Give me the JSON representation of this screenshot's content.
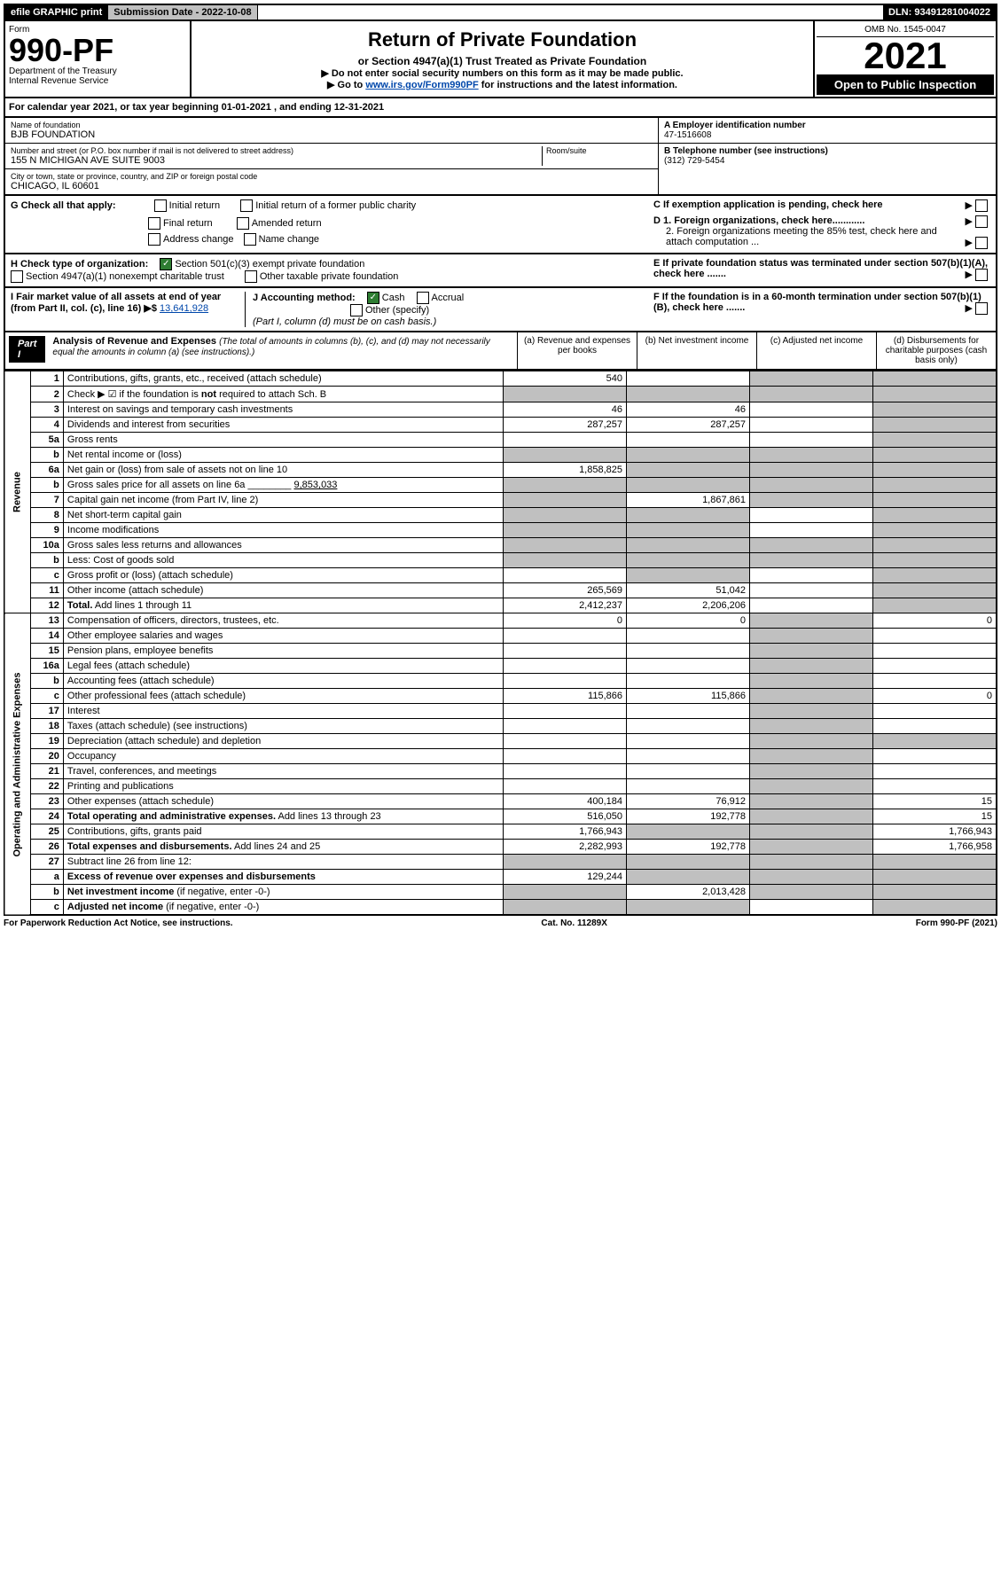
{
  "top": {
    "efile": "efile GRAPHIC print",
    "sub_label": "Submission Date - 2022-10-08",
    "dln": "DLN: 93491281004022"
  },
  "header": {
    "form_label": "Form",
    "form_num": "990-PF",
    "dept": "Department of the Treasury",
    "irs": "Internal Revenue Service",
    "title": "Return of Private Foundation",
    "subtitle": "or Section 4947(a)(1) Trust Treated as Private Foundation",
    "instr1": "▶ Do not enter social security numbers on this form as it may be made public.",
    "instr2_prefix": "▶ Go to ",
    "instr2_link": "www.irs.gov/Form990PF",
    "instr2_suffix": " for instructions and the latest information.",
    "omb": "OMB No. 1545-0047",
    "year": "2021",
    "open": "Open to Public Inspection"
  },
  "cal": "For calendar year 2021, or tax year beginning 01-01-2021              , and ending 12-31-2021",
  "info": {
    "name_lbl": "Name of foundation",
    "name": "BJB FOUNDATION",
    "addr_lbl": "Number and street (or P.O. box number if mail is not delivered to street address)",
    "addr": "155 N MICHIGAN AVE SUITE 9003",
    "room_lbl": "Room/suite",
    "city_lbl": "City or town, state or province, country, and ZIP or foreign postal code",
    "city": "CHICAGO, IL  60601",
    "ein_lbl": "A Employer identification number",
    "ein": "47-1516608",
    "tel_lbl": "B Telephone number (see instructions)",
    "tel": "(312) 729-5454",
    "c_lbl": "C If exemption application is pending, check here",
    "d1": "D 1. Foreign organizations, check here............",
    "d2": "2. Foreign organizations meeting the 85% test, check here and attach computation ...",
    "e_lbl": "E If private foundation status was terminated under section 507(b)(1)(A), check here .......",
    "f_lbl": "F If the foundation is in a 60-month termination under section 507(b)(1)(B), check here ......."
  },
  "g": {
    "label": "G Check all that apply:",
    "opts": [
      "Initial return",
      "Initial return of a former public charity",
      "Final return",
      "Amended return",
      "Address change",
      "Name change"
    ]
  },
  "h": {
    "label": "H Check type of organization:",
    "opt1": "Section 501(c)(3) exempt private foundation",
    "opt2": "Section 4947(a)(1) nonexempt charitable trust",
    "opt3": "Other taxable private foundation"
  },
  "i": {
    "label": "I Fair market value of all assets at end of year (from Part II, col. (c), line 16) ▶$",
    "value": "13,641,928"
  },
  "j": {
    "label": "J Accounting method:",
    "cash": "Cash",
    "accrual": "Accrual",
    "other": "Other (specify)",
    "note": "(Part I, column (d) must be on cash basis.)"
  },
  "part1": {
    "hdr": "Part I",
    "title": "Analysis of Revenue and Expenses",
    "sub": "(The total of amounts in columns (b), (c), and (d) may not necessarily equal the amounts in column (a) (see instructions).)",
    "col_a": "(a) Revenue and expenses per books",
    "col_b": "(b) Net investment income",
    "col_c": "(c) Adjusted net income",
    "col_d": "(d) Disbursements for charitable purposes (cash basis only)"
  },
  "side_rev": "Revenue",
  "side_exp": "Operating and Administrative Expenses",
  "rows": [
    {
      "n": "1",
      "d": "Contributions, gifts, grants, etc., received (attach schedule)",
      "a": "540",
      "b": "",
      "c": "grey",
      "dc": "grey"
    },
    {
      "n": "2",
      "d": "Check ▶ ☑ if the foundation is <b>not</b> required to attach Sch. B",
      "a": "grey",
      "b": "grey",
      "c": "grey",
      "dc": "grey"
    },
    {
      "n": "3",
      "d": "Interest on savings and temporary cash investments",
      "a": "46",
      "b": "46",
      "c": "",
      "dc": "grey"
    },
    {
      "n": "4",
      "d": "Dividends and interest from securities",
      "a": "287,257",
      "b": "287,257",
      "c": "",
      "dc": "grey"
    },
    {
      "n": "5a",
      "d": "Gross rents",
      "a": "",
      "b": "",
      "c": "",
      "dc": "grey"
    },
    {
      "n": "b",
      "d": "Net rental income or (loss)",
      "a": "grey",
      "b": "grey",
      "c": "grey",
      "dc": "grey"
    },
    {
      "n": "6a",
      "d": "Net gain or (loss) from sale of assets not on line 10",
      "a": "1,858,825",
      "b": "grey",
      "c": "grey",
      "dc": "grey"
    },
    {
      "n": "b",
      "d": "Gross sales price for all assets on line 6a ________ <u>9,853,033</u>",
      "a": "grey",
      "b": "grey",
      "c": "grey",
      "dc": "grey"
    },
    {
      "n": "7",
      "d": "Capital gain net income (from Part IV, line 2)",
      "a": "grey",
      "b": "1,867,861",
      "c": "grey",
      "dc": "grey"
    },
    {
      "n": "8",
      "d": "Net short-term capital gain",
      "a": "grey",
      "b": "grey",
      "c": "",
      "dc": "grey"
    },
    {
      "n": "9",
      "d": "Income modifications",
      "a": "grey",
      "b": "grey",
      "c": "",
      "dc": "grey"
    },
    {
      "n": "10a",
      "d": "Gross sales less returns and allowances",
      "a": "grey",
      "b": "grey",
      "c": "grey",
      "dc": "grey"
    },
    {
      "n": "b",
      "d": "Less: Cost of goods sold",
      "a": "grey",
      "b": "grey",
      "c": "grey",
      "dc": "grey"
    },
    {
      "n": "c",
      "d": "Gross profit or (loss) (attach schedule)",
      "a": "",
      "b": "grey",
      "c": "",
      "dc": "grey"
    },
    {
      "n": "11",
      "d": "Other income (attach schedule)",
      "a": "265,569",
      "b": "51,042",
      "c": "",
      "dc": "grey"
    },
    {
      "n": "12",
      "d": "<b>Total.</b> Add lines 1 through 11",
      "a": "2,412,237",
      "b": "2,206,206",
      "c": "",
      "dc": "grey"
    },
    {
      "n": "13",
      "d": "Compensation of officers, directors, trustees, etc.",
      "a": "0",
      "b": "0",
      "c": "grey",
      "dc": "0"
    },
    {
      "n": "14",
      "d": "Other employee salaries and wages",
      "a": "",
      "b": "",
      "c": "grey",
      "dc": ""
    },
    {
      "n": "15",
      "d": "Pension plans, employee benefits",
      "a": "",
      "b": "",
      "c": "grey",
      "dc": ""
    },
    {
      "n": "16a",
      "d": "Legal fees (attach schedule)",
      "a": "",
      "b": "",
      "c": "grey",
      "dc": ""
    },
    {
      "n": "b",
      "d": "Accounting fees (attach schedule)",
      "a": "",
      "b": "",
      "c": "grey",
      "dc": ""
    },
    {
      "n": "c",
      "d": "Other professional fees (attach schedule)",
      "a": "115,866",
      "b": "115,866",
      "c": "grey",
      "dc": "0"
    },
    {
      "n": "17",
      "d": "Interest",
      "a": "",
      "b": "",
      "c": "grey",
      "dc": ""
    },
    {
      "n": "18",
      "d": "Taxes (attach schedule) (see instructions)",
      "a": "",
      "b": "",
      "c": "grey",
      "dc": ""
    },
    {
      "n": "19",
      "d": "Depreciation (attach schedule) and depletion",
      "a": "",
      "b": "",
      "c": "grey",
      "dc": "grey"
    },
    {
      "n": "20",
      "d": "Occupancy",
      "a": "",
      "b": "",
      "c": "grey",
      "dc": ""
    },
    {
      "n": "21",
      "d": "Travel, conferences, and meetings",
      "a": "",
      "b": "",
      "c": "grey",
      "dc": ""
    },
    {
      "n": "22",
      "d": "Printing and publications",
      "a": "",
      "b": "",
      "c": "grey",
      "dc": ""
    },
    {
      "n": "23",
      "d": "Other expenses (attach schedule)",
      "a": "400,184",
      "b": "76,912",
      "c": "grey",
      "dc": "15"
    },
    {
      "n": "24",
      "d": "<b>Total operating and administrative expenses.</b> Add lines 13 through 23",
      "a": "516,050",
      "b": "192,778",
      "c": "grey",
      "dc": "15"
    },
    {
      "n": "25",
      "d": "Contributions, gifts, grants paid",
      "a": "1,766,943",
      "b": "grey",
      "c": "grey",
      "dc": "1,766,943"
    },
    {
      "n": "26",
      "d": "<b>Total expenses and disbursements.</b> Add lines 24 and 25",
      "a": "2,282,993",
      "b": "192,778",
      "c": "grey",
      "dc": "1,766,958"
    },
    {
      "n": "27",
      "d": "Subtract line 26 from line 12:",
      "a": "grey",
      "b": "grey",
      "c": "grey",
      "dc": "grey"
    },
    {
      "n": "a",
      "d": "<b>Excess of revenue over expenses and disbursements</b>",
      "a": "129,244",
      "b": "grey",
      "c": "grey",
      "dc": "grey"
    },
    {
      "n": "b",
      "d": "<b>Net investment income</b> (if negative, enter -0-)",
      "a": "grey",
      "b": "2,013,428",
      "c": "grey",
      "dc": "grey"
    },
    {
      "n": "c",
      "d": "<b>Adjusted net income</b> (if negative, enter -0-)",
      "a": "grey",
      "b": "grey",
      "c": "",
      "dc": "grey"
    }
  ],
  "footer": {
    "left": "For Paperwork Reduction Act Notice, see instructions.",
    "mid": "Cat. No. 11289X",
    "right": "Form 990-PF (2021)"
  }
}
